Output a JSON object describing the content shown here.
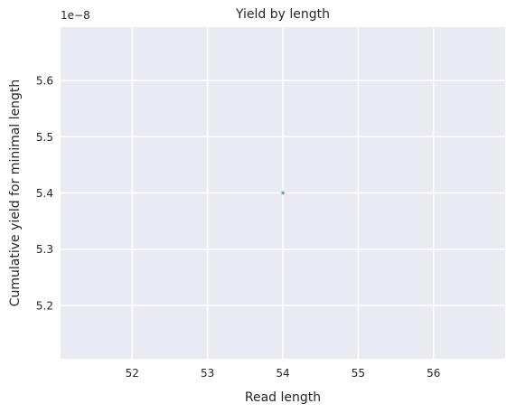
{
  "chart_data": {
    "type": "scatter",
    "title": "Yield by length",
    "xlabel": "Read length",
    "ylabel": "Cumulative yield for minimal length",
    "y_offset_label": "1e−8",
    "x_ticks": [
      52,
      53,
      54,
      55,
      56
    ],
    "x_tick_labels": [
      "52",
      "53",
      "54",
      "55",
      "56"
    ],
    "y_ticks": [
      5.2,
      5.3,
      5.4,
      5.5,
      5.6
    ],
    "y_tick_labels": [
      "5.2",
      "5.3",
      "5.4",
      "5.5",
      "5.6"
    ],
    "xlim": [
      51.05,
      56.95
    ],
    "ylim": [
      5.105,
      5.695
    ],
    "grid": true,
    "series": [
      {
        "x": [
          54
        ],
        "y": [
          5.4
        ]
      }
    ],
    "colors": {
      "background": "#eaeaf2",
      "grid": "#ffffff",
      "point": "#4cb3a6",
      "text": "#262626"
    }
  }
}
